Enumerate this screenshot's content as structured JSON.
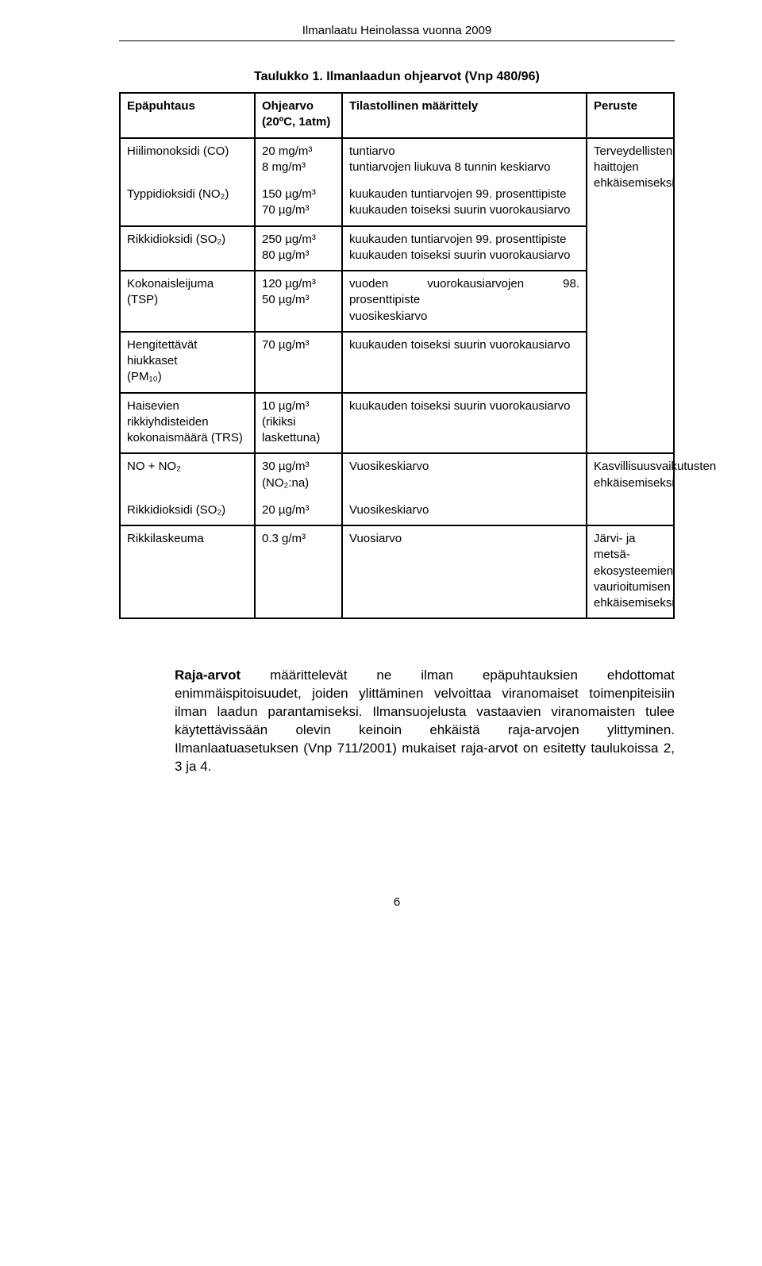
{
  "header": "Ilmanlaatu Heinolassa vuonna 2009",
  "caption": "Taulukko 1. Ilmanlaadun ohjearvot (Vnp 480/96)",
  "table": {
    "head": {
      "c0": "Epäpuhtaus",
      "c1": "Ohjearvo (20ºC, 1atm)",
      "c2": "Tilastollinen määrittely",
      "c3": "Peruste"
    },
    "r1": {
      "c0": "Hiilimonoksidi (CO)",
      "c1a": "20 mg/m³",
      "c1b": "8 mg/m³",
      "c2a": "tuntiarvo",
      "c2b": "tuntiarvojen liukuva 8 tunnin keskiarvo",
      "c3": "Terveydellisten haittojen ehkäisemiseksi"
    },
    "r2": {
      "c0": "Typpidioksidi (NO₂)",
      "c1a": "150 µg/m³",
      "c1b": "70 µg/m³",
      "c2a": "kuukauden tuntiarvojen 99. prosenttipiste",
      "c2b": "kuukauden toiseksi suurin vuorokausiarvo"
    },
    "r3": {
      "c0": "Rikkidioksidi (SO₂)",
      "c1a": "250 µg/m³",
      "c1b": "80 µg/m³",
      "c2a": "kuukauden tuntiarvojen 99. prosenttipiste",
      "c2b": "kuukauden toiseksi suurin vuorokausiarvo"
    },
    "r4": {
      "c0": "Kokonaisleijuma (TSP)",
      "c1a": "120 µg/m³",
      "c1b": "50 µg/m³",
      "c2a": "vuoden vuorokausiarvojen 98. prosenttipiste",
      "c2b": "vuosikeskiarvo"
    },
    "r5": {
      "c0a": "Hengitettävät hiukkaset",
      "c0b": "(PM₁₀)",
      "c1": "70 µg/m³",
      "c2": "kuukauden toiseksi suurin vuorokausiarvo"
    },
    "r6": {
      "c0a": "Haisevien",
      "c0b": "rikkiyhdisteiden kokonaismäärä (TRS)",
      "c1a": "10 µg/m³",
      "c1b": "(rikiksi laskettuna)",
      "c2": "kuukauden toiseksi suurin vuorokausiarvo"
    },
    "r7": {
      "c0": "NO + NO₂",
      "c1a": "30 µg/m³",
      "c1b": "(NO₂:na)",
      "c2": "Vuosikeskiarvo",
      "c3": "Kasvillisuusvaikutusten ehkäisemiseksi"
    },
    "r8": {
      "c0": "Rikkidioksidi (SO₂)",
      "c1": "20 µg/m³",
      "c2": "Vuosikeskiarvo"
    },
    "r9": {
      "c0": "Rikkilaskeuma",
      "c1": "0.3 g/m³",
      "c2": "Vuosiarvo",
      "c3": "Järvi- ja metsä-ekosysteemien vaurioitumisen ehkäisemiseksi"
    }
  },
  "body": {
    "lead": "Raja-arvot",
    "text": " määrittelevät ne ilman epäpuhtauksien ehdottomat enimmäispitoisuudet, joiden ylittäminen velvoittaa viranomaiset toimenpiteisiin ilman laadun parantamiseksi. Ilmansuojelusta vastaavien viranomaisten tulee käytettävissään olevin keinoin ehkäistä raja-arvojen ylittyminen. Ilmanlaatuasetuksen (Vnp 711/2001) mukaiset raja-arvot on esitetty taulukoissa 2, 3 ja 4."
  },
  "footer": "6"
}
